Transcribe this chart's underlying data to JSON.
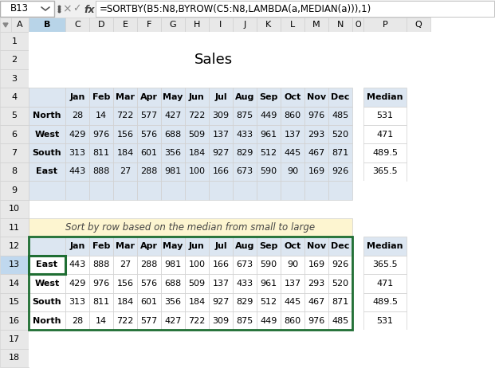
{
  "formula_bar_cell": "B13",
  "formula_bar_text": "=SORTBY(B5:N8,BYROW(C5:N8,LAMBDA(a,MEDIAN(a))),1)",
  "title": "Sales",
  "top_table": {
    "header": [
      "",
      "Jan",
      "Feb",
      "Mar",
      "Apr",
      "May",
      "Jun",
      "Jul",
      "Aug",
      "Sep",
      "Oct",
      "Nov",
      "Dec",
      "Median"
    ],
    "rows": [
      [
        "North",
        28,
        14,
        722,
        577,
        427,
        722,
        309,
        875,
        449,
        860,
        976,
        485,
        531
      ],
      [
        "West",
        429,
        976,
        156,
        576,
        688,
        509,
        137,
        433,
        961,
        137,
        293,
        520,
        471
      ],
      [
        "South",
        313,
        811,
        184,
        601,
        356,
        184,
        927,
        829,
        512,
        445,
        467,
        871,
        489.5
      ],
      [
        "East",
        443,
        888,
        27,
        288,
        981,
        100,
        166,
        673,
        590,
        90,
        169,
        926,
        365.5
      ]
    ]
  },
  "sort_note": "Sort by row based on the median from small to large",
  "bottom_table": {
    "header": [
      "",
      "Jan",
      "Feb",
      "Mar",
      "Apr",
      "May",
      "Jun",
      "Jul",
      "Aug",
      "Sep",
      "Oct",
      "Nov",
      "Dec",
      "Median"
    ],
    "rows": [
      [
        "East",
        443,
        888,
        27,
        288,
        981,
        100,
        166,
        673,
        590,
        90,
        169,
        926,
        365.5
      ],
      [
        "West",
        429,
        976,
        156,
        576,
        688,
        509,
        137,
        433,
        961,
        137,
        293,
        520,
        471
      ],
      [
        "South",
        313,
        811,
        184,
        601,
        356,
        184,
        927,
        829,
        512,
        445,
        467,
        871,
        489.5
      ],
      [
        "North",
        28,
        14,
        722,
        577,
        427,
        722,
        309,
        875,
        449,
        860,
        976,
        485,
        531
      ]
    ]
  },
  "col_letters": [
    "A",
    "B",
    "C",
    "D",
    "E",
    "F",
    "G",
    "H",
    "I",
    "J",
    "K",
    "L",
    "M",
    "N",
    "O",
    "P",
    "Q"
  ],
  "row_numbers": [
    "1",
    "2",
    "3",
    "4",
    "5",
    "6",
    "7",
    "8",
    "9",
    "10",
    "11",
    "12",
    "13",
    "14",
    "15",
    "16",
    "17",
    "18"
  ],
  "bg_color": "#ffffff",
  "header_bg": "#dce6f1",
  "note_bg": "#fdf5d0",
  "bottom_table_border": "#1f6e33",
  "b13_border": "#1f6e33",
  "grid_color": "#d0d0d0",
  "top_bar_bg": "#f0f0f0",
  "col_header_bg": "#e8e8e8",
  "col_b_header_bg": "#b8d4e8",
  "row_header_bg": "#e8e8e8",
  "row13_header_bg": "#c0d8ee"
}
